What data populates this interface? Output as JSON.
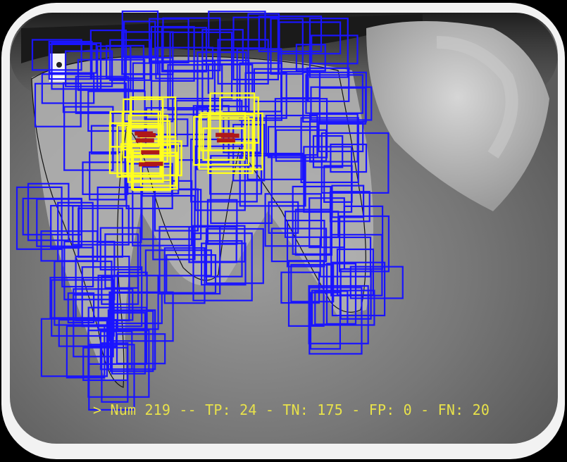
{
  "image": {
    "subject": "dental-xray-with-detection-boxes",
    "colors": {
      "frame": "#f0f0f0",
      "xray_dark": "#2a2a2a",
      "xray_mid": "#8a8a8a",
      "tooth_light": "#b8b8b8",
      "negative_box": "#1a14ff",
      "positive_box": "#ffff1e",
      "positive_center": "#b01818",
      "outline": "#111111",
      "text": "#e8e24a"
    }
  },
  "overlay": {
    "stats_text": "> Num 219 -- TP: 24 - TN: 175 - FP: 0 - FN: 20"
  }
}
